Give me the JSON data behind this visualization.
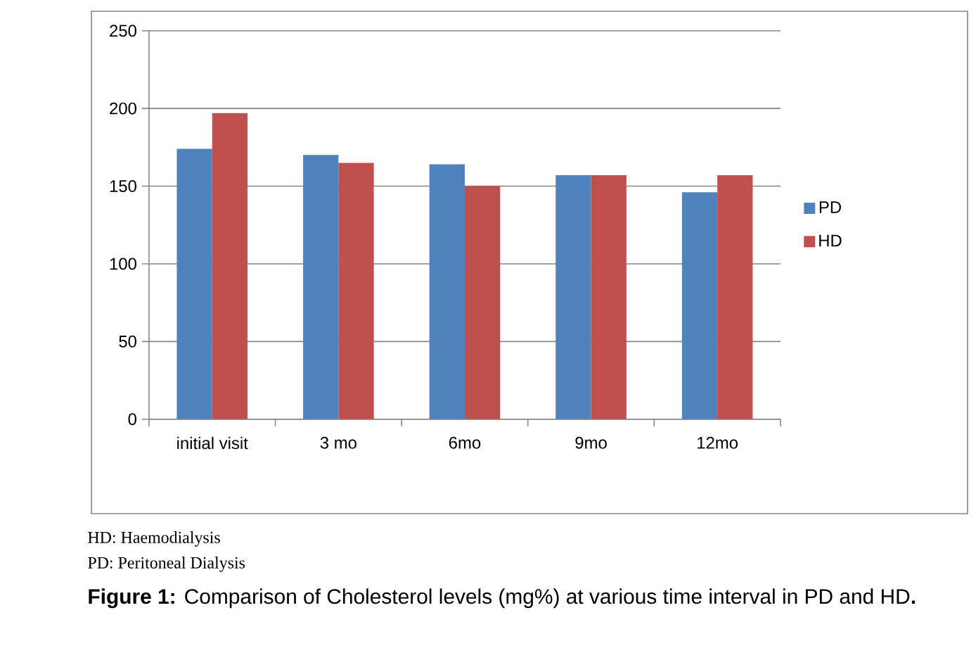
{
  "chart_data": {
    "type": "bar",
    "categories": [
      "initial visit",
      "3 mo",
      "6mo",
      "9mo",
      "12mo"
    ],
    "series": [
      {
        "name": "PD",
        "color": "#4f81bd",
        "values": [
          174,
          170,
          164,
          157,
          146
        ]
      },
      {
        "name": "HD",
        "color": "#c0504d",
        "values": [
          197,
          165,
          150,
          157,
          157
        ]
      }
    ],
    "ylim": [
      0,
      250
    ],
    "yticks": [
      0,
      50,
      100,
      150,
      200,
      250
    ],
    "grid": "y",
    "legend": "right",
    "annotations": [
      "HD: Haemodialysis",
      "PD: Peritoneal Dialysis",
      "**Figure 1:** Comparison of Cholesterol levels (mg%) at various time interval in PD and HD**.**"
    ]
  }
}
